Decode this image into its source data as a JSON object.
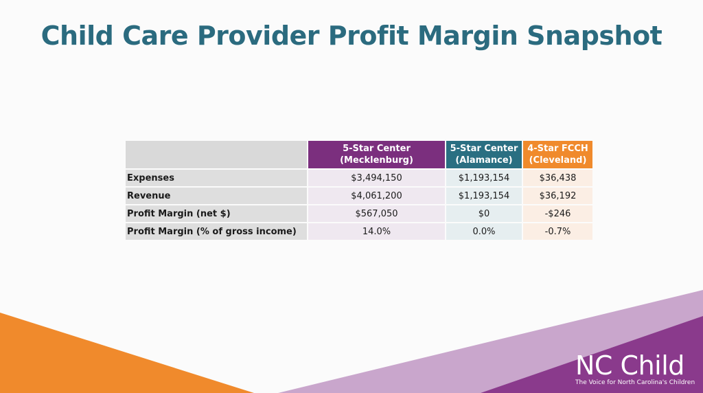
{
  "slide": {
    "title": "Child Care Provider Profit Margin Snapshot"
  },
  "table": {
    "columns": [
      {
        "line1": "5-Star Center",
        "line2": "(Mecklenburg)"
      },
      {
        "line1": "5-Star Center",
        "line2": "(Alamance)"
      },
      {
        "line1": "4-Star FCCH",
        "line2": "(Cleveland)"
      }
    ],
    "rows": [
      {
        "label": "Expenses",
        "values": [
          "$3,494,150",
          "$1,193,154",
          "$36,438"
        ]
      },
      {
        "label": "Revenue",
        "values": [
          "$4,061,200",
          "$1,193,154",
          "$36,192"
        ]
      },
      {
        "label": "Profit Margin (net $)",
        "values": [
          "$567,050",
          "$0",
          "-$246"
        ]
      },
      {
        "label": "Profit Margin (% of gross income)",
        "values": [
          "14.0%",
          "0.0%",
          "-0.7%"
        ]
      }
    ],
    "colors": {
      "col1": "#7b2f7e",
      "col2": "#2a6f82",
      "col3": "#f08a2c"
    }
  },
  "brand": {
    "name": "NC Child",
    "tagline": "The Voice for North Carolina's Children"
  }
}
